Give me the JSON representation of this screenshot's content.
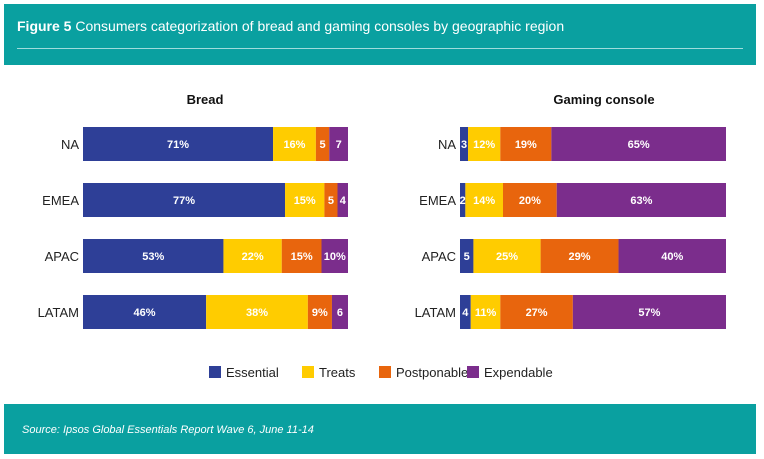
{
  "figure": {
    "label": "Figure 5",
    "caption": "Consumers categorization of bread and gaming consoles by geographic region"
  },
  "source": "Source: Ipsos Global Essentials Report Wave 6, June 11-14",
  "chart_data": {
    "type": "bar",
    "orientation": "horizontal",
    "stacked": true,
    "categories": [
      "NA",
      "EMEA",
      "APAC",
      "LATAM"
    ],
    "legend": [
      {
        "name": "Essential",
        "color": "#2e3f97"
      },
      {
        "name": "Treats",
        "color": "#ffcc00"
      },
      {
        "name": "Postponable",
        "color": "#e8650d"
      },
      {
        "name": "Expendable",
        "color": "#7b2d8c"
      }
    ],
    "panels": [
      {
        "title": "Bread",
        "series": [
          {
            "name": "Essential",
            "values": [
              71,
              77,
              53,
              46
            ],
            "labels": [
              "71%",
              "77%",
              "53%",
              "46%"
            ]
          },
          {
            "name": "Treats",
            "values": [
              16,
              15,
              22,
              38
            ],
            "labels": [
              "16%",
              "15%",
              "22%",
              "38%"
            ]
          },
          {
            "name": "Postponable",
            "values": [
              5,
              5,
              15,
              9
            ],
            "labels": [
              "5",
              "5",
              "15%",
              "9%"
            ]
          },
          {
            "name": "Expendable",
            "values": [
              7,
              4,
              10,
              6
            ],
            "labels": [
              "7",
              "4",
              "10%",
              "6"
            ]
          }
        ]
      },
      {
        "title": "Gaming console",
        "series": [
          {
            "name": "Essential",
            "values": [
              3,
              2,
              5,
              4
            ],
            "labels": [
              "3",
              "2",
              "5",
              "4"
            ]
          },
          {
            "name": "Treats",
            "values": [
              12,
              14,
              25,
              11
            ],
            "labels": [
              "12%",
              "14%",
              "25%",
              "11%"
            ]
          },
          {
            "name": "Postponable",
            "values": [
              19,
              20,
              29,
              27
            ],
            "labels": [
              "19%",
              "20%",
              "29%",
              "27%"
            ]
          },
          {
            "name": "Expendable",
            "values": [
              65,
              63,
              40,
              57
            ],
            "labels": [
              "65%",
              "63%",
              "40%",
              "57%"
            ]
          }
        ]
      }
    ]
  }
}
